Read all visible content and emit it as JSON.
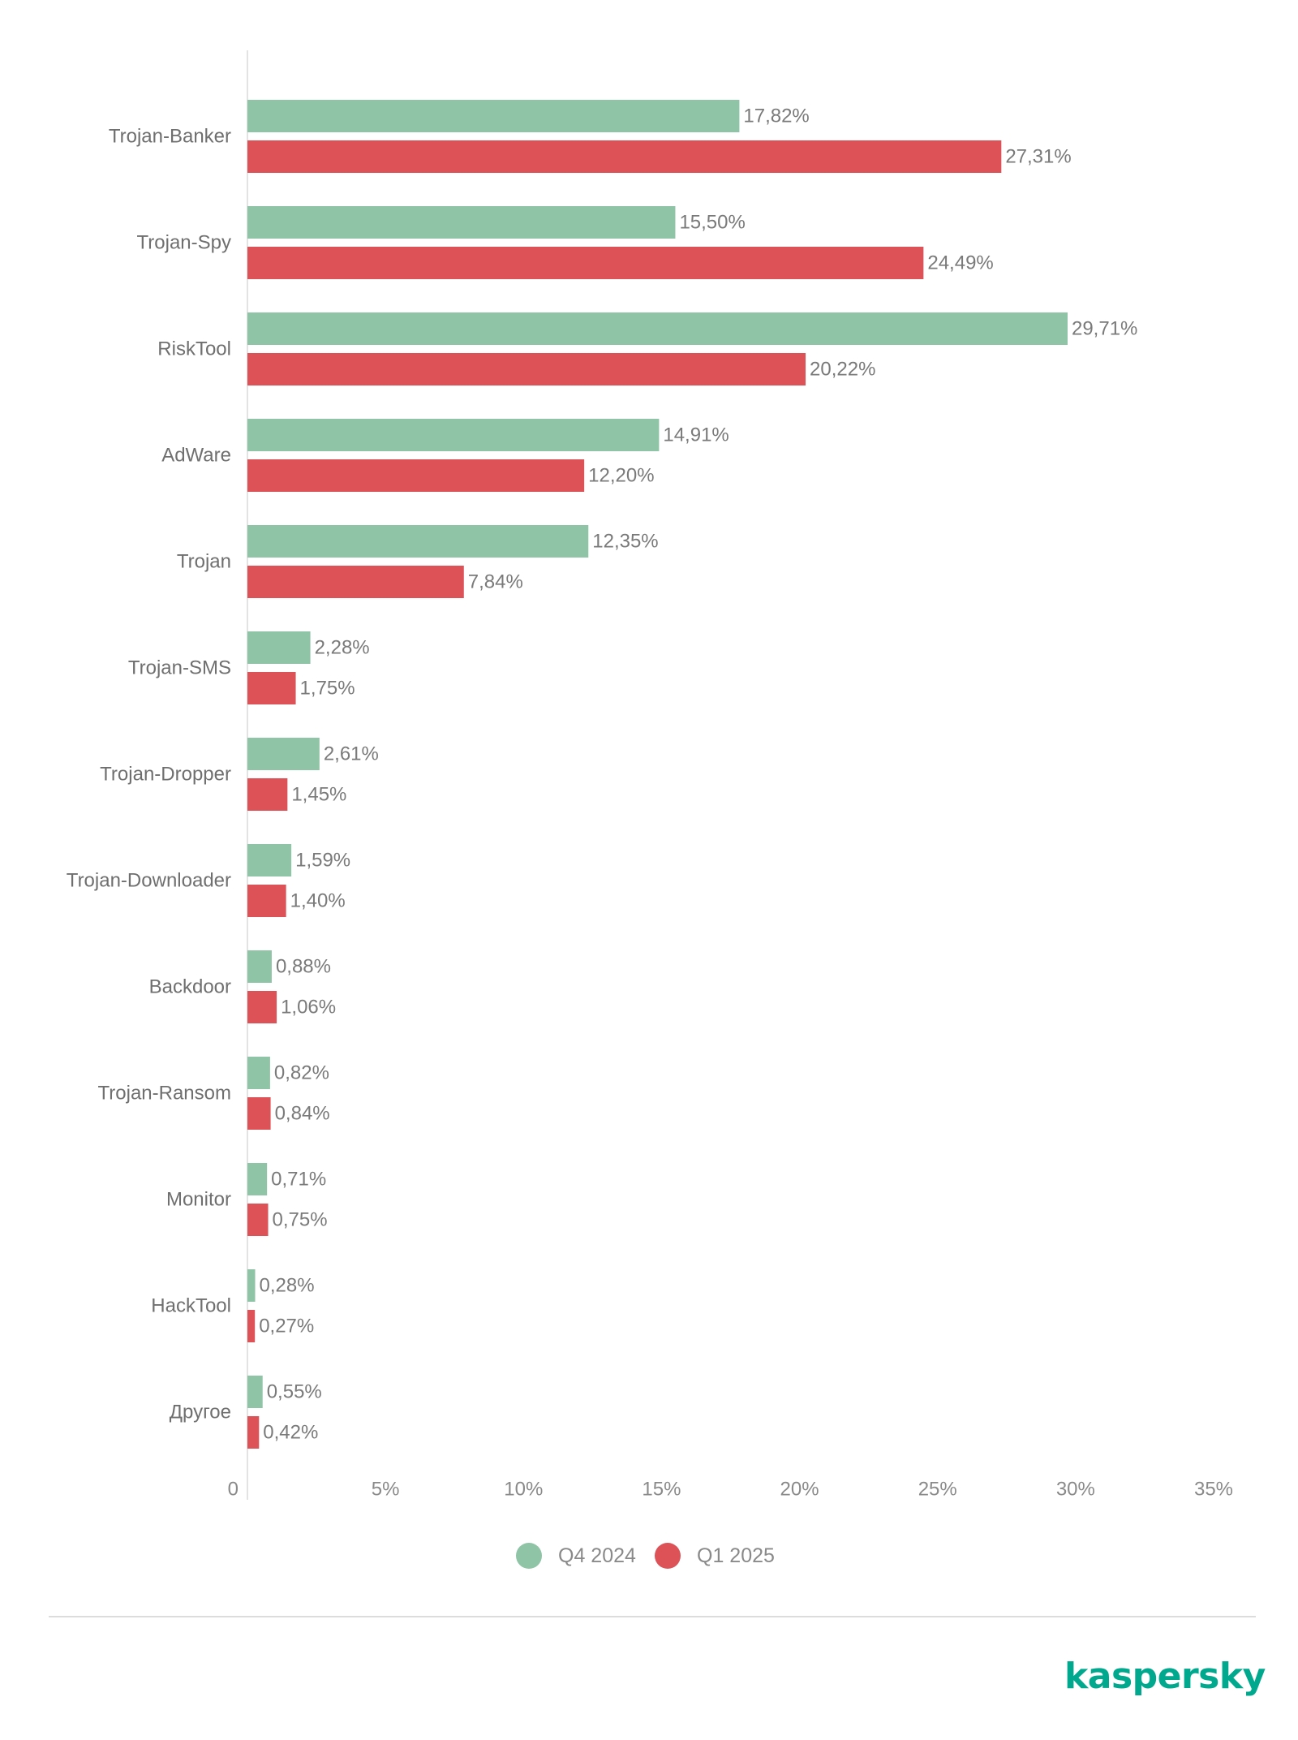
{
  "chart_data": {
    "type": "bar",
    "orientation": "horizontal",
    "categories": [
      "Trojan-Banker",
      "Trojan-Spy",
      "RiskTool",
      "AdWare",
      "Trojan",
      "Trojan-SMS",
      "Trojan-Dropper",
      "Trojan-Downloader",
      "Backdoor",
      "Trojan-Ransom",
      "Monitor",
      "HackTool",
      "Другое"
    ],
    "series": [
      {
        "name": "Q4 2024",
        "color": "#8fc4a6",
        "values": [
          17.82,
          15.5,
          29.71,
          14.91,
          12.35,
          2.28,
          2.61,
          1.59,
          0.88,
          0.82,
          0.71,
          0.28,
          0.55
        ],
        "labels": [
          "17,82%",
          "15,50%",
          "29,71%",
          "14,91%",
          "12,35%",
          "2,28%",
          "2,61%",
          "1,59%",
          "0,88%",
          "0,82%",
          "0,71%",
          "0,28%",
          "0,55%"
        ]
      },
      {
        "name": "Q1 2025",
        "color": "#dc5257",
        "values": [
          27.31,
          24.49,
          20.22,
          12.2,
          7.84,
          1.75,
          1.45,
          1.4,
          1.06,
          0.84,
          0.75,
          0.27,
          0.42
        ],
        "labels": [
          "27,31%",
          "24,49%",
          "20,22%",
          "12,20%",
          "7,84%",
          "1,75%",
          "1,45%",
          "1,40%",
          "1,06%",
          "0,84%",
          "0,75%",
          "0,27%",
          "0,42%"
        ]
      }
    ],
    "xlim": [
      0,
      35
    ],
    "ticks": [
      0,
      5,
      10,
      15,
      20,
      25,
      30,
      35
    ],
    "tick_labels": [
      "0",
      "5%",
      "10%",
      "15%",
      "20%",
      "25%",
      "30%",
      "35%"
    ],
    "grid": false,
    "legend_position": "bottom-center"
  },
  "brand": {
    "logo_text": "kaspersky",
    "color": "#00a88e"
  }
}
